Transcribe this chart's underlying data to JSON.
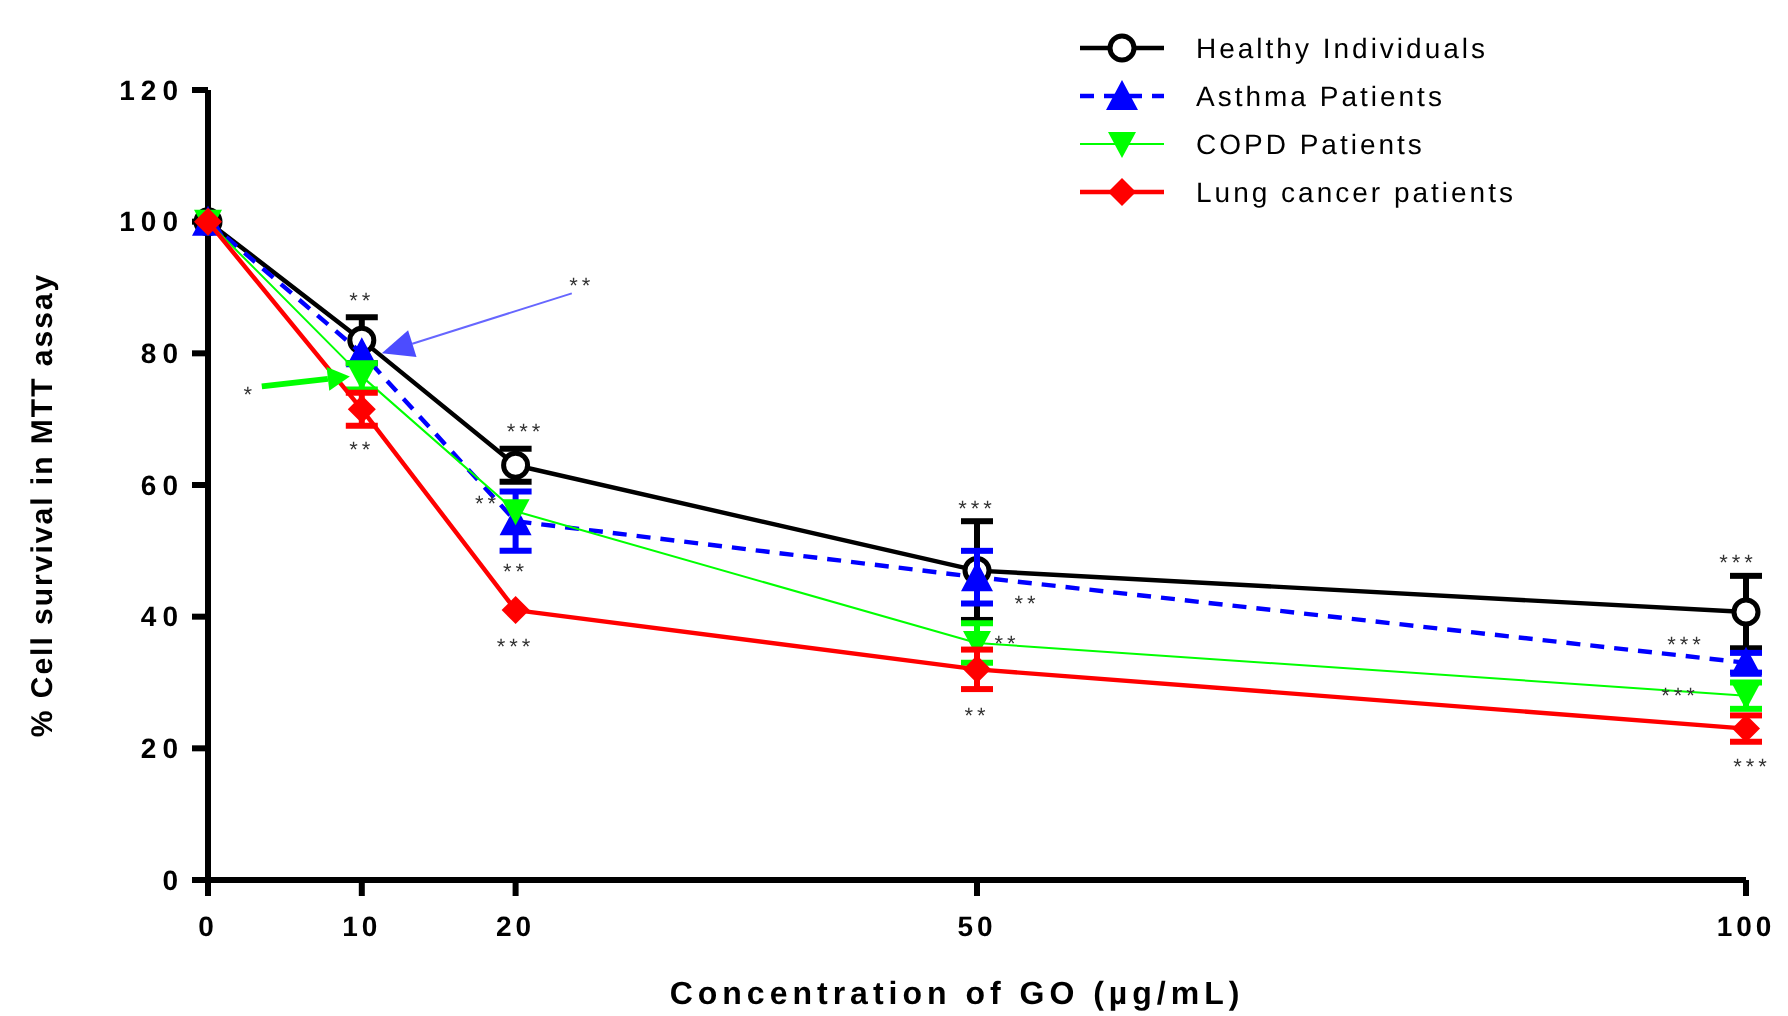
{
  "chart_data": {
    "type": "line",
    "xlabel": "Concentration of GO (µg/mL)",
    "ylabel": "% Cell survival in MTT assay",
    "x": [
      0,
      10,
      20,
      50,
      100
    ],
    "xlim": [
      0,
      100
    ],
    "xticks": [
      0,
      10,
      20,
      50,
      100
    ],
    "ylim": [
      0,
      120
    ],
    "yticks": [
      0,
      20,
      40,
      60,
      80,
      100,
      120
    ],
    "grid": false,
    "legend": "top right",
    "series": [
      {
        "name": "Healthy Individuals",
        "color": "#000000",
        "marker": "circle",
        "line_style": "solid",
        "values": [
          100,
          82,
          63,
          47,
          40.7
        ],
        "errors": [
          null,
          3.5,
          2.5,
          7.5,
          5.5
        ]
      },
      {
        "name": "Asthma Patients",
        "color": "#0000ff",
        "marker": "triangle",
        "line_style": "dashed",
        "values": [
          100,
          80,
          54.5,
          46,
          33
        ],
        "errors": [
          null,
          null,
          4.5,
          4,
          1.5
        ]
      },
      {
        "name": "COPD Patients",
        "color": "#00ff00",
        "marker": "triangle-down",
        "line_style": "solid",
        "values": [
          100,
          76.5,
          56,
          36,
          28
        ],
        "errors": [
          null,
          2,
          null,
          3,
          2
        ]
      },
      {
        "name": "Lung cancer patients",
        "color": "#ff0000",
        "marker": "diamond",
        "line_style": "solid",
        "values": [
          100,
          71.5,
          41,
          32,
          23
        ],
        "errors": [
          null,
          2.5,
          null,
          3,
          2
        ]
      }
    ],
    "annotations": [
      {
        "text": "**",
        "x": 10,
        "y": 82
      },
      {
        "text": "**",
        "x": 10,
        "y": 71.5
      },
      "*",
      "**",
      {
        "text": "***",
        "x": 20,
        "y": 63
      },
      {
        "text": "**",
        "x": 20,
        "y": 56
      },
      {
        "text": "**",
        "x": 20,
        "y": 54.5
      },
      {
        "text": "***",
        "x": 20,
        "y": 41
      },
      {
        "text": "***",
        "x": 50,
        "y": 47
      },
      {
        "text": "**",
        "x": 50,
        "y": 46
      },
      {
        "text": "**",
        "x": 50,
        "y": 36
      },
      {
        "text": "**",
        "x": 50,
        "y": 32
      },
      {
        "text": "***",
        "x": 100,
        "y": 40.7
      },
      {
        "text": "***",
        "x": 100,
        "y": 33
      },
      {
        "text": "***",
        "x": 100,
        "y": 28
      },
      {
        "text": "***",
        "x": 100,
        "y": 23
      }
    ]
  }
}
